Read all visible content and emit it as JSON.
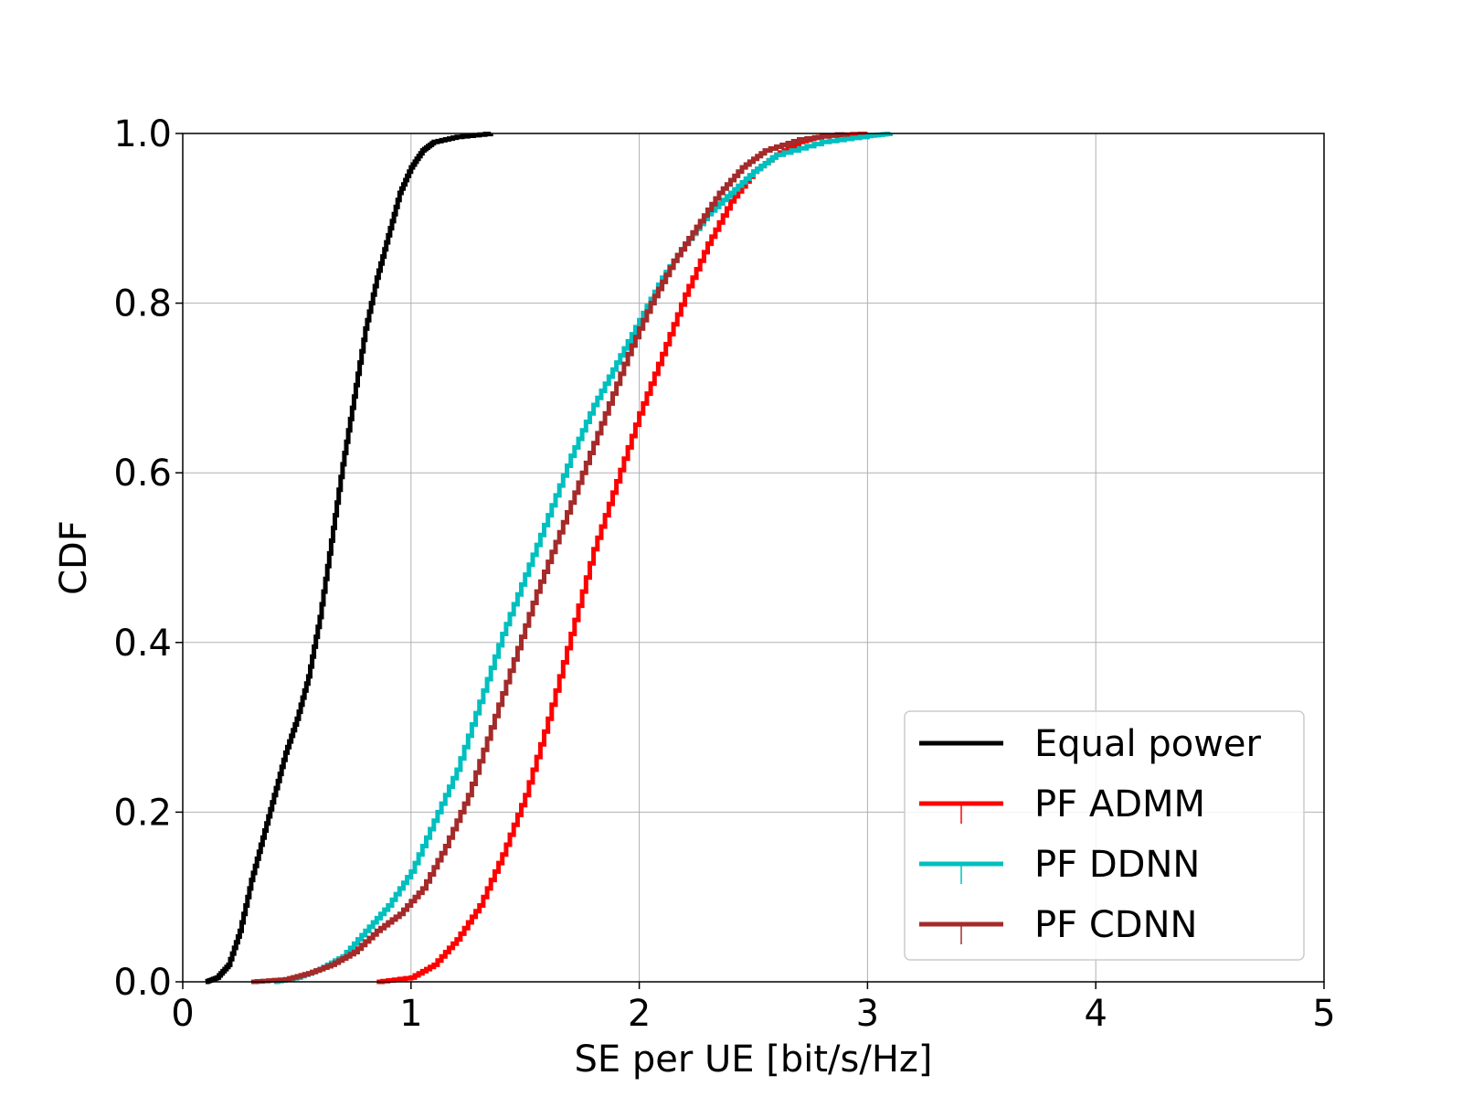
{
  "chart_data": {
    "type": "line",
    "title": "",
    "xlabel": "SE per UE [bit/s/Hz]",
    "ylabel": "CDF",
    "xlim": [
      0,
      5
    ],
    "ylim": [
      0,
      1
    ],
    "xticks": [
      0,
      1,
      2,
      3,
      4,
      5
    ],
    "xtick_labels": [
      "0",
      "1",
      "2",
      "3",
      "4",
      "5"
    ],
    "yticks": [
      0.0,
      0.2,
      0.4,
      0.6,
      0.8,
      1.0
    ],
    "ytick_labels": [
      "0.0",
      "0.2",
      "0.4",
      "0.6",
      "0.8",
      "1.0"
    ],
    "grid": true,
    "legend_position": "bottom-right",
    "series": [
      {
        "name": "Equal power",
        "color": "#000000",
        "points": [
          [
            0.1,
            0.0
          ],
          [
            0.15,
            0.005
          ],
          [
            0.2,
            0.02
          ],
          [
            0.25,
            0.06
          ],
          [
            0.3,
            0.12
          ],
          [
            0.35,
            0.17
          ],
          [
            0.4,
            0.22
          ],
          [
            0.45,
            0.27
          ],
          [
            0.5,
            0.31
          ],
          [
            0.55,
            0.36
          ],
          [
            0.6,
            0.43
          ],
          [
            0.65,
            0.52
          ],
          [
            0.7,
            0.61
          ],
          [
            0.75,
            0.69
          ],
          [
            0.8,
            0.77
          ],
          [
            0.85,
            0.83
          ],
          [
            0.9,
            0.88
          ],
          [
            0.95,
            0.93
          ],
          [
            1.0,
            0.96
          ],
          [
            1.05,
            0.98
          ],
          [
            1.1,
            0.99
          ],
          [
            1.2,
            0.996
          ],
          [
            1.35,
            1.0
          ]
        ]
      },
      {
        "name": "PF ADMM",
        "color": "#ff0000",
        "points": [
          [
            0.85,
            0.0
          ],
          [
            1.0,
            0.005
          ],
          [
            1.1,
            0.02
          ],
          [
            1.2,
            0.05
          ],
          [
            1.3,
            0.09
          ],
          [
            1.4,
            0.15
          ],
          [
            1.5,
            0.22
          ],
          [
            1.6,
            0.31
          ],
          [
            1.7,
            0.41
          ],
          [
            1.8,
            0.51
          ],
          [
            1.9,
            0.59
          ],
          [
            2.0,
            0.67
          ],
          [
            2.1,
            0.74
          ],
          [
            2.2,
            0.81
          ],
          [
            2.3,
            0.87
          ],
          [
            2.4,
            0.92
          ],
          [
            2.5,
            0.955
          ],
          [
            2.6,
            0.975
          ],
          [
            2.7,
            0.99
          ],
          [
            2.8,
            0.997
          ],
          [
            3.0,
            1.0
          ]
        ]
      },
      {
        "name": "PF DDNN",
        "color": "#00bfbf",
        "points": [
          [
            0.4,
            0.0
          ],
          [
            0.5,
            0.005
          ],
          [
            0.6,
            0.015
          ],
          [
            0.7,
            0.03
          ],
          [
            0.8,
            0.06
          ],
          [
            0.9,
            0.09
          ],
          [
            1.0,
            0.13
          ],
          [
            1.1,
            0.19
          ],
          [
            1.2,
            0.25
          ],
          [
            1.3,
            0.33
          ],
          [
            1.4,
            0.41
          ],
          [
            1.5,
            0.48
          ],
          [
            1.6,
            0.55
          ],
          [
            1.7,
            0.62
          ],
          [
            1.8,
            0.68
          ],
          [
            1.9,
            0.73
          ],
          [
            2.0,
            0.78
          ],
          [
            2.1,
            0.83
          ],
          [
            2.2,
            0.87
          ],
          [
            2.3,
            0.905
          ],
          [
            2.4,
            0.93
          ],
          [
            2.5,
            0.955
          ],
          [
            2.6,
            0.975
          ],
          [
            2.8,
            0.99
          ],
          [
            3.0,
            0.997
          ],
          [
            3.1,
            1.0
          ]
        ]
      },
      {
        "name": "PF CDNN",
        "color": "#a52a2a",
        "points": [
          [
            0.3,
            0.0
          ],
          [
            0.45,
            0.003
          ],
          [
            0.55,
            0.01
          ],
          [
            0.65,
            0.02
          ],
          [
            0.75,
            0.035
          ],
          [
            0.85,
            0.06
          ],
          [
            0.95,
            0.08
          ],
          [
            1.05,
            0.11
          ],
          [
            1.15,
            0.16
          ],
          [
            1.25,
            0.22
          ],
          [
            1.35,
            0.3
          ],
          [
            1.45,
            0.38
          ],
          [
            1.55,
            0.46
          ],
          [
            1.65,
            0.53
          ],
          [
            1.75,
            0.6
          ],
          [
            1.85,
            0.67
          ],
          [
            1.95,
            0.74
          ],
          [
            2.05,
            0.8
          ],
          [
            2.15,
            0.85
          ],
          [
            2.25,
            0.89
          ],
          [
            2.35,
            0.93
          ],
          [
            2.45,
            0.96
          ],
          [
            2.55,
            0.98
          ],
          [
            2.7,
            0.993
          ],
          [
            2.9,
            1.0
          ]
        ]
      }
    ]
  }
}
